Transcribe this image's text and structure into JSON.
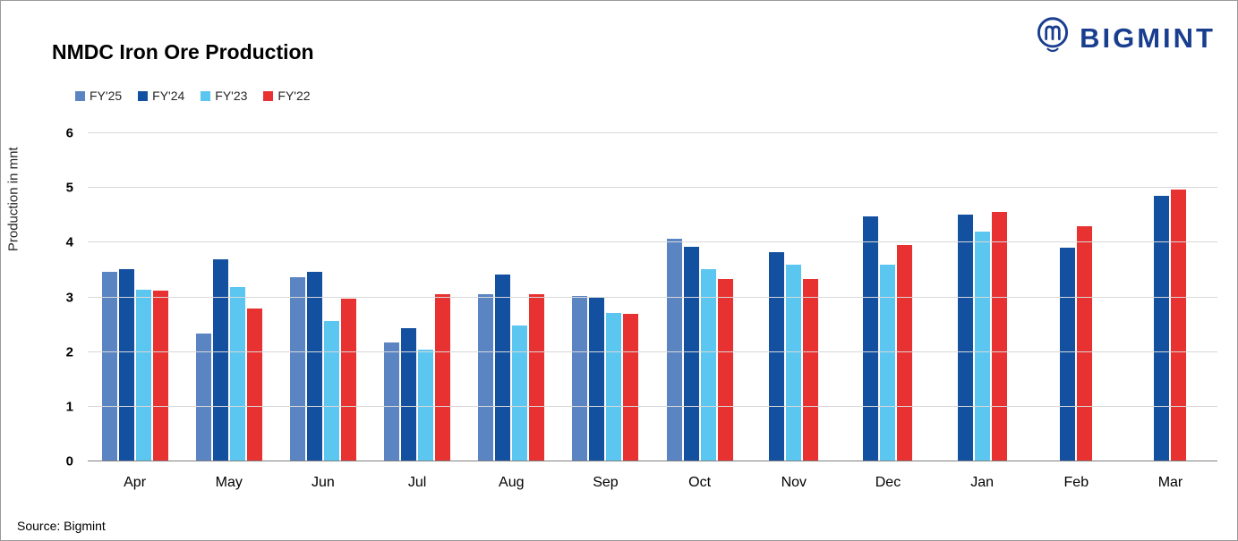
{
  "title": "NMDC Iron Ore Production",
  "logo": {
    "text": "BIGMINT"
  },
  "source": "Source: Bigmint",
  "chart_data": {
    "type": "bar",
    "title": "NMDC Iron Ore Production",
    "xlabel": "",
    "ylabel": "Production in mnt",
    "ylim": [
      0,
      6
    ],
    "yticks": [
      0,
      1,
      2,
      3,
      4,
      5,
      6
    ],
    "grid": true,
    "legend_position": "top-left",
    "categories": [
      "Apr",
      "May",
      "Jun",
      "Jul",
      "Aug",
      "Sep",
      "Oct",
      "Nov",
      "Dec",
      "Jan",
      "Feb",
      "Mar"
    ],
    "series": [
      {
        "name": "FY'25",
        "color": "#5b84c2",
        "values": [
          3.47,
          2.33,
          3.37,
          2.17,
          3.06,
          3.03,
          4.07,
          null,
          null,
          null,
          null,
          null
        ]
      },
      {
        "name": "FY'24",
        "color": "#1450a0",
        "values": [
          3.51,
          3.7,
          3.47,
          2.43,
          3.41,
          2.99,
          3.92,
          3.83,
          4.48,
          4.52,
          3.91,
          4.85
        ]
      },
      {
        "name": "FY'23",
        "color": "#5bc6f0",
        "values": [
          3.14,
          3.19,
          2.56,
          2.04,
          2.48,
          2.72,
          3.52,
          3.6,
          3.6,
          4.21,
          null,
          null
        ]
      },
      {
        "name": "FY'22",
        "color": "#e73231",
        "values": [
          3.12,
          2.79,
          2.98,
          3.05,
          3.05,
          2.69,
          3.33,
          3.34,
          3.95,
          4.56,
          4.3,
          4.97
        ]
      }
    ]
  }
}
